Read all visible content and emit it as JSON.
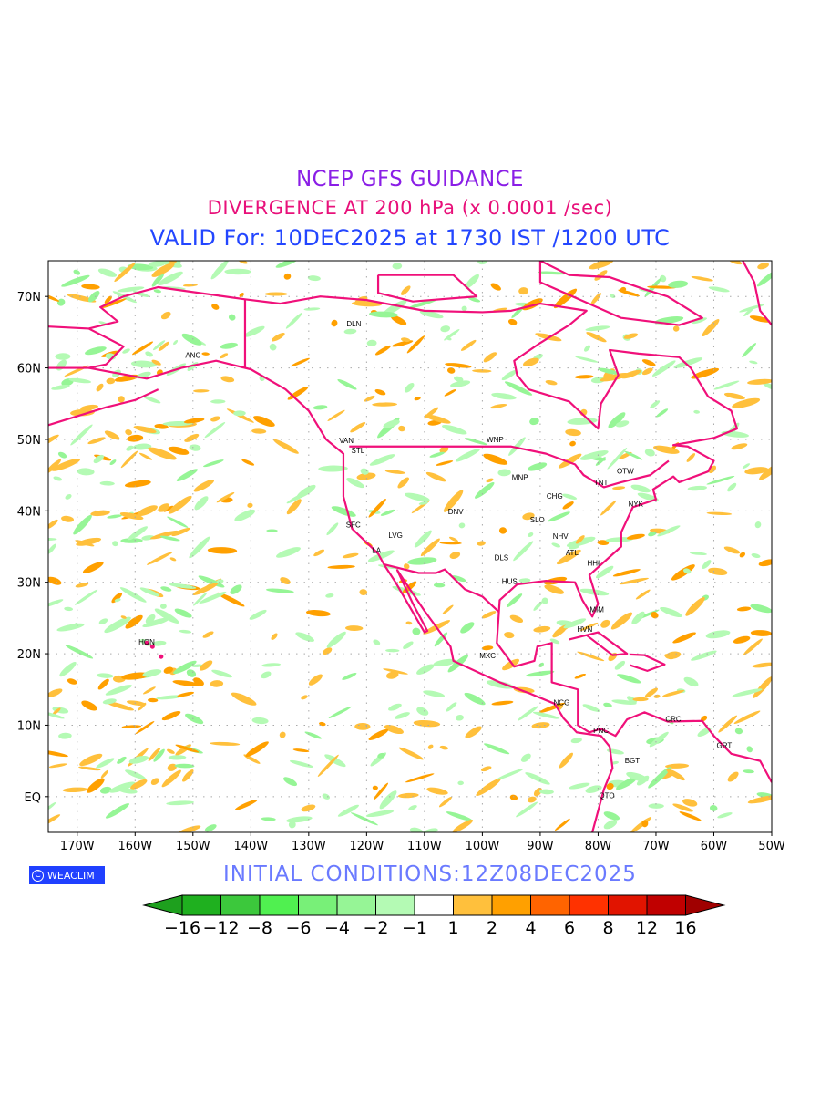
{
  "header": {
    "title": "NCEP GFS GUIDANCE",
    "subtitle": "DIVERGENCE AT 200 hPa (x 0.0001 /sec)",
    "valid": "VALID For: 10DEC2025 at 1730 IST /1200 UTC"
  },
  "initial_conditions": "INITIAL  CONDITIONS:12Z08DEC2025",
  "badge": {
    "symbol": "C",
    "label": "WEACLIM"
  },
  "axes": {
    "lon_labels": [
      "170W",
      "160W",
      "150W",
      "140W",
      "130W",
      "120W",
      "110W",
      "100W",
      "90W",
      "80W",
      "70W",
      "60W",
      "50W"
    ],
    "lat_labels": [
      "70N",
      "60N",
      "50N",
      "40N",
      "30N",
      "20N",
      "10N",
      "EQ"
    ]
  },
  "cities": [
    {
      "name": "ANC",
      "lon": -150,
      "lat": 61.4
    },
    {
      "name": "DLN",
      "lon": -122.2,
      "lat": 65.8
    },
    {
      "name": "VAN",
      "lon": -123.5,
      "lat": 49.5
    },
    {
      "name": "STL",
      "lon": -121.5,
      "lat": 48.1
    },
    {
      "name": "WNP",
      "lon": -97.8,
      "lat": 49.6
    },
    {
      "name": "MNP",
      "lon": -93.5,
      "lat": 44.3
    },
    {
      "name": "OTW",
      "lon": -75.3,
      "lat": 45.2
    },
    {
      "name": "TNT",
      "lon": -79.5,
      "lat": 43.6
    },
    {
      "name": "CHG",
      "lon": -87.5,
      "lat": 41.7
    },
    {
      "name": "NYK",
      "lon": -73.5,
      "lat": 40.6
    },
    {
      "name": "DNV",
      "lon": -104.6,
      "lat": 39.5
    },
    {
      "name": "SLO",
      "lon": -90.5,
      "lat": 38.4
    },
    {
      "name": "SFC",
      "lon": -122.3,
      "lat": 37.7
    },
    {
      "name": "NHV",
      "lon": -86.5,
      "lat": 36.1
    },
    {
      "name": "LVG",
      "lon": -115,
      "lat": 36.2
    },
    {
      "name": "LA",
      "lon": -118.3,
      "lat": 34.1
    },
    {
      "name": "ATL",
      "lon": -84.5,
      "lat": 33.8
    },
    {
      "name": "DLS",
      "lon": -96.7,
      "lat": 33.1
    },
    {
      "name": "HHI",
      "lon": -80.8,
      "lat": 32.3
    },
    {
      "name": "HUS",
      "lon": -95.3,
      "lat": 29.8
    },
    {
      "name": "MIM",
      "lon": -80.2,
      "lat": 25.8
    },
    {
      "name": "HVN",
      "lon": -82.3,
      "lat": 23.1
    },
    {
      "name": "HON",
      "lon": -158,
      "lat": 21.3
    },
    {
      "name": "MXC",
      "lon": -99.1,
      "lat": 19.4
    },
    {
      "name": "NCG",
      "lon": -86.3,
      "lat": 12.8
    },
    {
      "name": "CRC",
      "lon": -67,
      "lat": 10.5
    },
    {
      "name": "PNC",
      "lon": -79.5,
      "lat": 8.9
    },
    {
      "name": "GRT",
      "lon": -58.2,
      "lat": 6.8
    },
    {
      "name": "BGT",
      "lon": -74.1,
      "lat": 4.7
    },
    {
      "name": "QTO",
      "lon": -78.5,
      "lat": -0.2
    }
  ],
  "colorbar": {
    "labels": [
      "−16",
      "−12",
      "−8",
      "−6",
      "−4",
      "−2",
      "−1",
      "1",
      "2",
      "4",
      "6",
      "8",
      "12",
      "16"
    ],
    "colors": [
      "#1fb01f",
      "#3cc83c",
      "#50f050",
      "#78f078",
      "#96f596",
      "#b4fab4",
      "#ffffff",
      "#ffc03c",
      "#ffa000",
      "#ff6400",
      "#ff3200",
      "#e11400",
      "#c00000"
    ],
    "under_color": "#1ea01e",
    "over_color": "#a00000"
  },
  "map_colors": {
    "coast": "#f0107a",
    "grid": "#aaaaaa"
  }
}
